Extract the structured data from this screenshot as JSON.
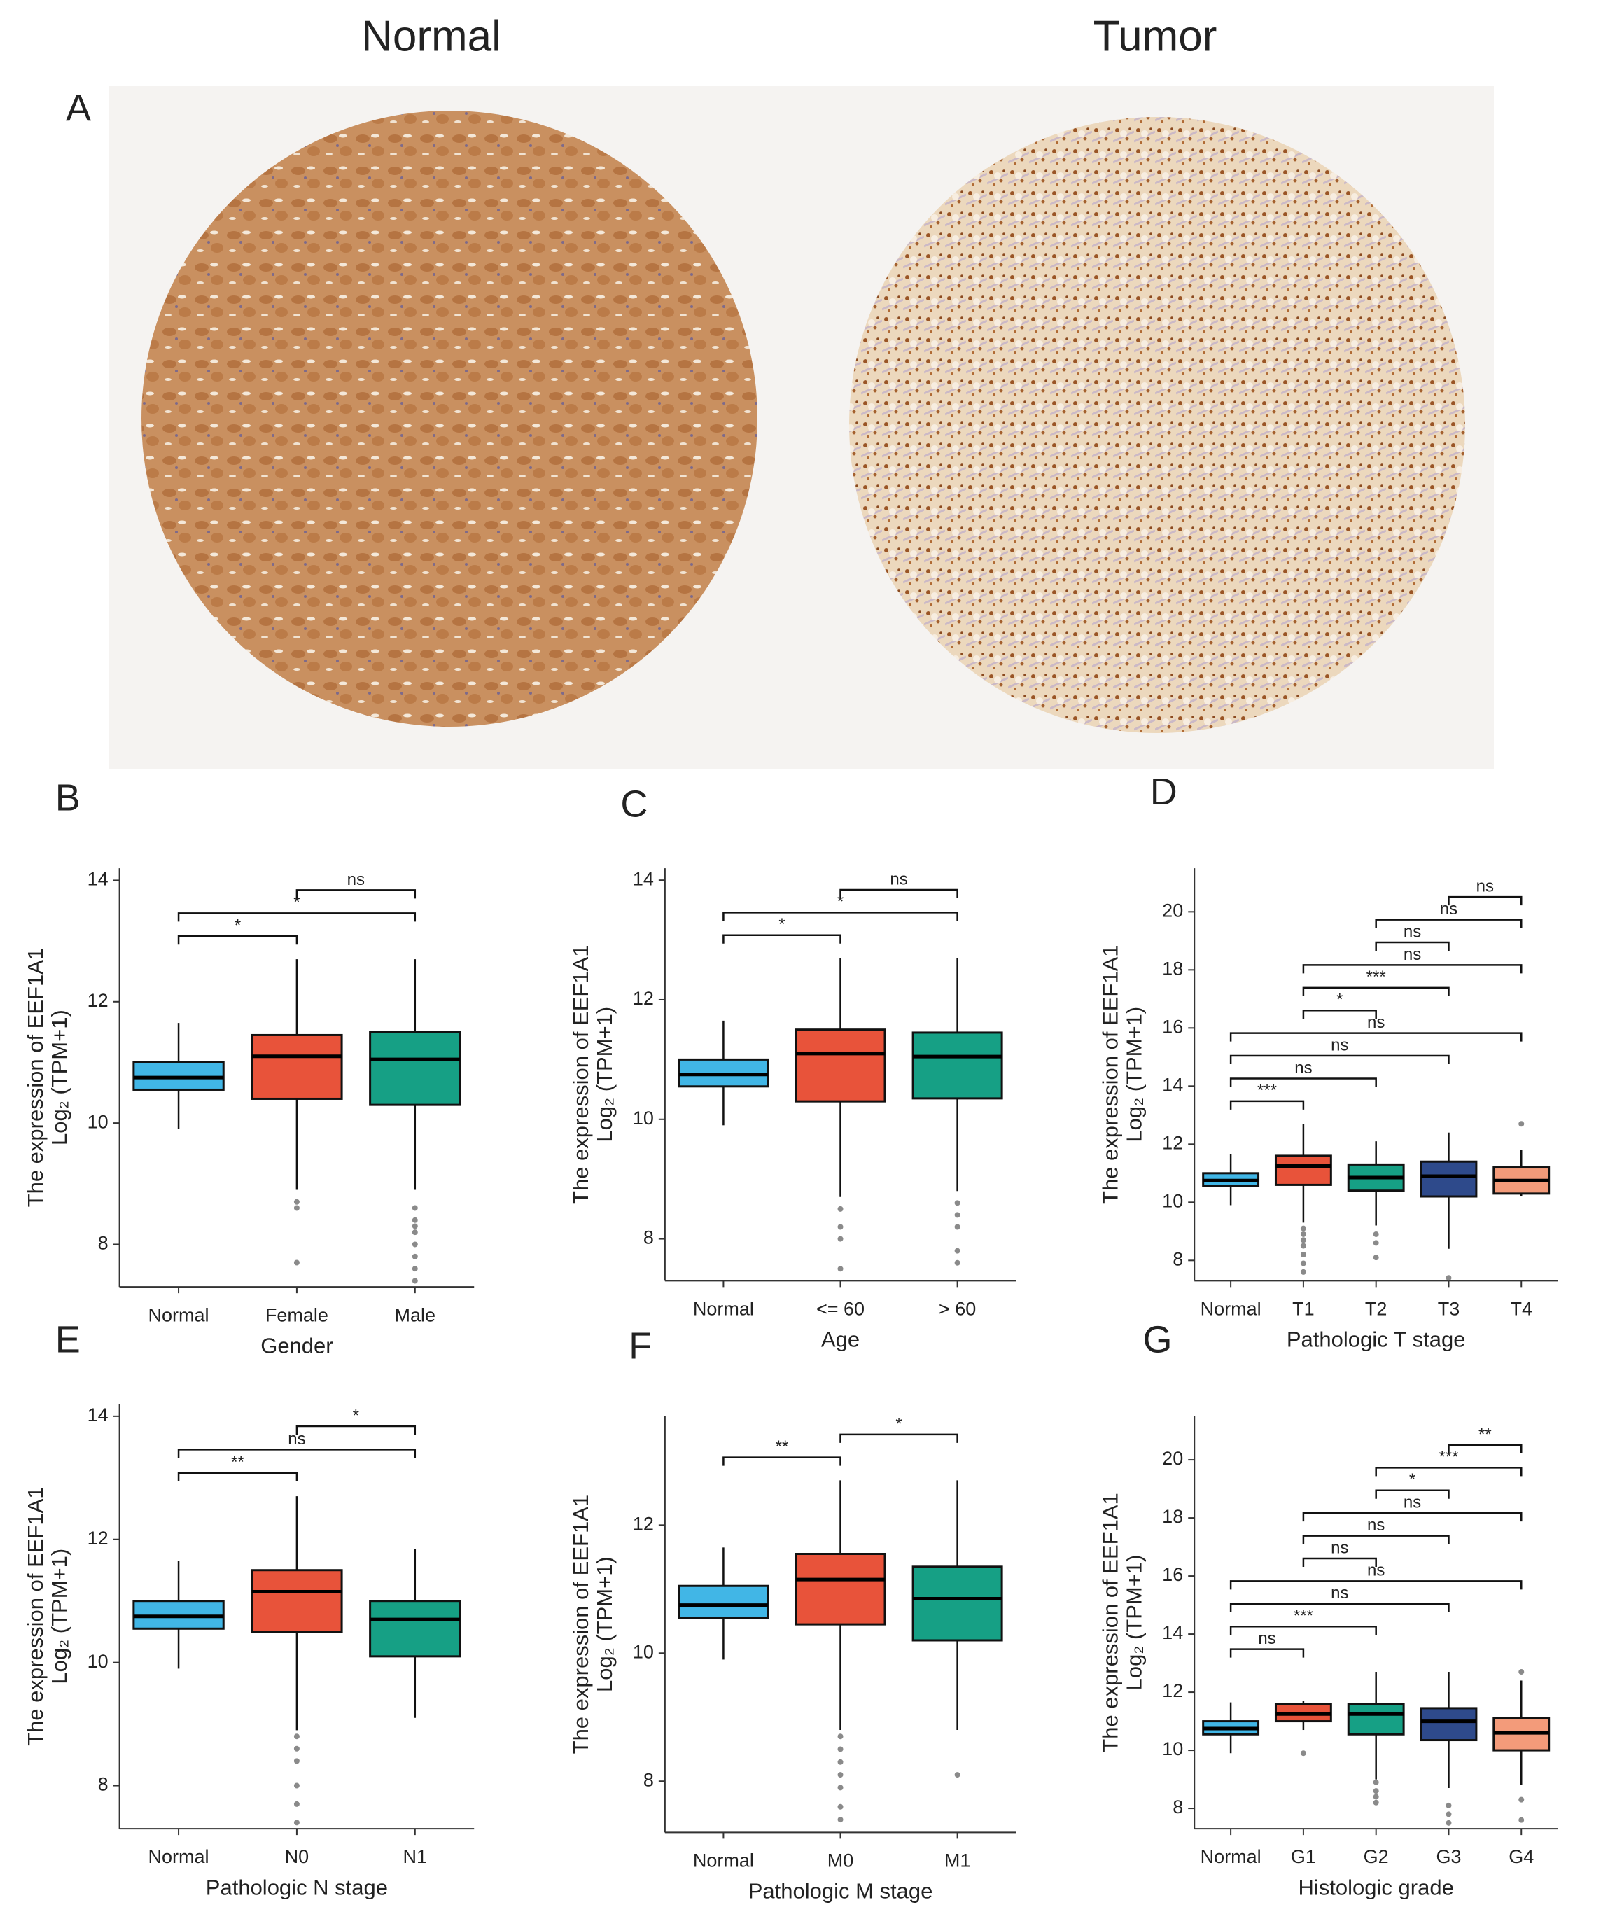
{
  "panel_a": {
    "label": "A",
    "images": [
      {
        "title": "Normal"
      },
      {
        "title": "Tumor"
      }
    ]
  },
  "chart_data": [
    {
      "type": "box",
      "panel": "B",
      "y_label": [
        "The expression of EEF1A1",
        "Log₂ (TPM+1)"
      ],
      "x_label": "Gender",
      "categories": [
        "Normal",
        "Female",
        "Male"
      ],
      "colors": [
        "#41b6e6",
        "#e8533a",
        "#16a085"
      ],
      "boxes": [
        {
          "low": 9.9,
          "q1": 10.55,
          "median": 10.75,
          "q3": 11.0,
          "high": 11.65,
          "outliers": []
        },
        {
          "low": 8.9,
          "q1": 10.4,
          "median": 11.1,
          "q3": 11.45,
          "high": 12.7,
          "outliers": [
            8.7,
            8.6,
            7.7
          ]
        },
        {
          "low": 8.9,
          "q1": 10.3,
          "median": 11.05,
          "q3": 11.5,
          "high": 12.7,
          "outliers": [
            8.6,
            8.4,
            8.3,
            8.2,
            8.0,
            7.8,
            7.6,
            7.4
          ]
        }
      ],
      "ylim": [
        7.3,
        14.2
      ],
      "yticks": [
        8,
        10,
        12,
        14
      ],
      "brackets": [
        {
          "pair": [
            0,
            1
          ],
          "label": "*"
        },
        {
          "pair": [
            0,
            2
          ],
          "label": "*"
        },
        {
          "pair": [
            1,
            2
          ],
          "label": "ns"
        }
      ]
    },
    {
      "type": "box",
      "panel": "C",
      "y_label": [
        "The expression of EEF1A1",
        "Log₂ (TPM+1)"
      ],
      "x_label": "Age",
      "categories": [
        "Normal",
        "<= 60",
        "> 60"
      ],
      "colors": [
        "#41b6e6",
        "#e8533a",
        "#16a085"
      ],
      "boxes": [
        {
          "low": 9.9,
          "q1": 10.55,
          "median": 10.75,
          "q3": 11.0,
          "high": 11.65,
          "outliers": []
        },
        {
          "low": 8.7,
          "q1": 10.3,
          "median": 11.1,
          "q3": 11.5,
          "high": 12.7,
          "outliers": [
            8.5,
            8.2,
            8.0,
            7.5
          ]
        },
        {
          "low": 8.8,
          "q1": 10.35,
          "median": 11.05,
          "q3": 11.45,
          "high": 12.7,
          "outliers": [
            8.6,
            8.4,
            8.2,
            7.8,
            7.6
          ]
        }
      ],
      "ylim": [
        7.3,
        14.2
      ],
      "yticks": [
        8,
        10,
        12,
        14
      ],
      "brackets": [
        {
          "pair": [
            0,
            1
          ],
          "label": "*"
        },
        {
          "pair": [
            0,
            2
          ],
          "label": "*"
        },
        {
          "pair": [
            1,
            2
          ],
          "label": "ns"
        }
      ]
    },
    {
      "type": "box",
      "panel": "D",
      "y_label": [
        "The expression of EEF1A1",
        "Log₂ (TPM+1)"
      ],
      "x_label": "Pathologic T stage",
      "categories": [
        "Normal",
        "T1",
        "T2",
        "T3",
        "T4"
      ],
      "colors": [
        "#41b6e6",
        "#e8533a",
        "#16a085",
        "#2e4a8b",
        "#f39b7a"
      ],
      "boxes": [
        {
          "low": 9.9,
          "q1": 10.55,
          "median": 10.75,
          "q3": 11.0,
          "high": 11.65,
          "outliers": []
        },
        {
          "low": 9.3,
          "q1": 10.6,
          "median": 11.25,
          "q3": 11.6,
          "high": 12.7,
          "outliers": [
            9.1,
            8.9,
            8.7,
            8.5,
            8.2,
            7.9,
            7.6
          ]
        },
        {
          "low": 9.2,
          "q1": 10.4,
          "median": 10.85,
          "q3": 11.3,
          "high": 12.1,
          "outliers": [
            8.9,
            8.6,
            8.1
          ]
        },
        {
          "low": 8.4,
          "q1": 10.2,
          "median": 10.9,
          "q3": 11.4,
          "high": 12.4,
          "outliers": [
            7.4
          ]
        },
        {
          "low": 10.2,
          "q1": 10.3,
          "median": 10.75,
          "q3": 11.2,
          "high": 11.8,
          "outliers": [
            12.7
          ]
        }
      ],
      "ylim": [
        7.3,
        21.5
      ],
      "yticks": [
        8,
        10,
        12,
        14,
        16,
        18,
        20
      ],
      "brackets": [
        {
          "pair": [
            0,
            1
          ],
          "label": "***"
        },
        {
          "pair": [
            0,
            2
          ],
          "label": "ns"
        },
        {
          "pair": [
            0,
            3
          ],
          "label": "ns"
        },
        {
          "pair": [
            0,
            4
          ],
          "label": "ns"
        },
        {
          "pair": [
            1,
            2
          ],
          "label": "*"
        },
        {
          "pair": [
            1,
            3
          ],
          "label": "***"
        },
        {
          "pair": [
            1,
            4
          ],
          "label": "ns"
        },
        {
          "pair": [
            2,
            3
          ],
          "label": "ns"
        },
        {
          "pair": [
            2,
            4
          ],
          "label": "ns"
        },
        {
          "pair": [
            3,
            4
          ],
          "label": "ns"
        }
      ]
    },
    {
      "type": "box",
      "panel": "E",
      "y_label": [
        "The expression of EEF1A1",
        "Log₂ (TPM+1)"
      ],
      "x_label": "Pathologic N stage",
      "categories": [
        "Normal",
        "N0",
        "N1"
      ],
      "colors": [
        "#41b6e6",
        "#e8533a",
        "#16a085"
      ],
      "boxes": [
        {
          "low": 9.9,
          "q1": 10.55,
          "median": 10.75,
          "q3": 11.0,
          "high": 11.65,
          "outliers": []
        },
        {
          "low": 8.9,
          "q1": 10.5,
          "median": 11.15,
          "q3": 11.5,
          "high": 12.7,
          "outliers": [
            8.8,
            8.6,
            8.4,
            8.0,
            7.7,
            7.4
          ]
        },
        {
          "low": 9.1,
          "q1": 10.1,
          "median": 10.7,
          "q3": 11.0,
          "high": 11.85,
          "outliers": []
        }
      ],
      "ylim": [
        7.3,
        14.2
      ],
      "yticks": [
        8,
        10,
        12,
        14
      ],
      "brackets": [
        {
          "pair": [
            0,
            1
          ],
          "label": "**"
        },
        {
          "pair": [
            0,
            2
          ],
          "label": "ns"
        },
        {
          "pair": [
            1,
            2
          ],
          "label": "*"
        }
      ]
    },
    {
      "type": "box",
      "panel": "F",
      "y_label": [
        "The expression of EEF1A1",
        "Log₂ (TPM+1)"
      ],
      "x_label": "Pathologic M stage",
      "categories": [
        "Normal",
        "M0",
        "M1"
      ],
      "colors": [
        "#41b6e6",
        "#e8533a",
        "#16a085"
      ],
      "boxes": [
        {
          "low": 9.9,
          "q1": 10.55,
          "median": 10.75,
          "q3": 11.05,
          "high": 11.65,
          "outliers": []
        },
        {
          "low": 8.8,
          "q1": 10.45,
          "median": 11.15,
          "q3": 11.55,
          "high": 12.7,
          "outliers": [
            8.7,
            8.5,
            8.3,
            8.1,
            7.9,
            7.6,
            7.4
          ]
        },
        {
          "low": 8.8,
          "q1": 10.2,
          "median": 10.85,
          "q3": 11.35,
          "high": 12.7,
          "outliers": [
            8.1
          ]
        }
      ],
      "ylim": [
        7.2,
        13.7
      ],
      "yticks": [
        8,
        10,
        12
      ],
      "brackets": [
        {
          "pair": [
            0,
            1
          ],
          "label": "**"
        },
        {
          "pair": [
            1,
            2
          ],
          "label": "*"
        }
      ]
    },
    {
      "type": "box",
      "panel": "G",
      "y_label": [
        "The expression of EEF1A1",
        "Log₂ (TPM+1)"
      ],
      "x_label": "Histologic grade",
      "categories": [
        "Normal",
        "G1",
        "G2",
        "G3",
        "G4"
      ],
      "colors": [
        "#41b6e6",
        "#e8533a",
        "#16a085",
        "#2e4a8b",
        "#f39b7a"
      ],
      "boxes": [
        {
          "low": 9.9,
          "q1": 10.55,
          "median": 10.75,
          "q3": 11.0,
          "high": 11.65,
          "outliers": []
        },
        {
          "low": 10.7,
          "q1": 11.0,
          "median": 11.25,
          "q3": 11.6,
          "high": 11.7,
          "outliers": [
            9.9
          ]
        },
        {
          "low": 9.0,
          "q1": 10.55,
          "median": 11.25,
          "q3": 11.6,
          "high": 12.7,
          "outliers": [
            8.9,
            8.6,
            8.4,
            8.2
          ]
        },
        {
          "low": 8.7,
          "q1": 10.35,
          "median": 11.0,
          "q3": 11.45,
          "high": 12.7,
          "outliers": [
            8.1,
            7.8,
            7.5
          ]
        },
        {
          "low": 8.8,
          "q1": 10.0,
          "median": 10.6,
          "q3": 11.1,
          "high": 12.4,
          "outliers": [
            12.7,
            8.3,
            7.6
          ]
        }
      ],
      "ylim": [
        7.3,
        21.5
      ],
      "yticks": [
        8,
        10,
        12,
        14,
        16,
        18,
        20
      ],
      "brackets": [
        {
          "pair": [
            0,
            1
          ],
          "label": "ns"
        },
        {
          "pair": [
            0,
            2
          ],
          "label": "***"
        },
        {
          "pair": [
            0,
            3
          ],
          "label": "ns"
        },
        {
          "pair": [
            0,
            4
          ],
          "label": "ns"
        },
        {
          "pair": [
            1,
            2
          ],
          "label": "ns"
        },
        {
          "pair": [
            1,
            3
          ],
          "label": "ns"
        },
        {
          "pair": [
            1,
            4
          ],
          "label": "ns"
        },
        {
          "pair": [
            2,
            3
          ],
          "label": "*"
        },
        {
          "pair": [
            2,
            4
          ],
          "label": "***"
        },
        {
          "pair": [
            3,
            4
          ],
          "label": "**"
        }
      ]
    }
  ]
}
